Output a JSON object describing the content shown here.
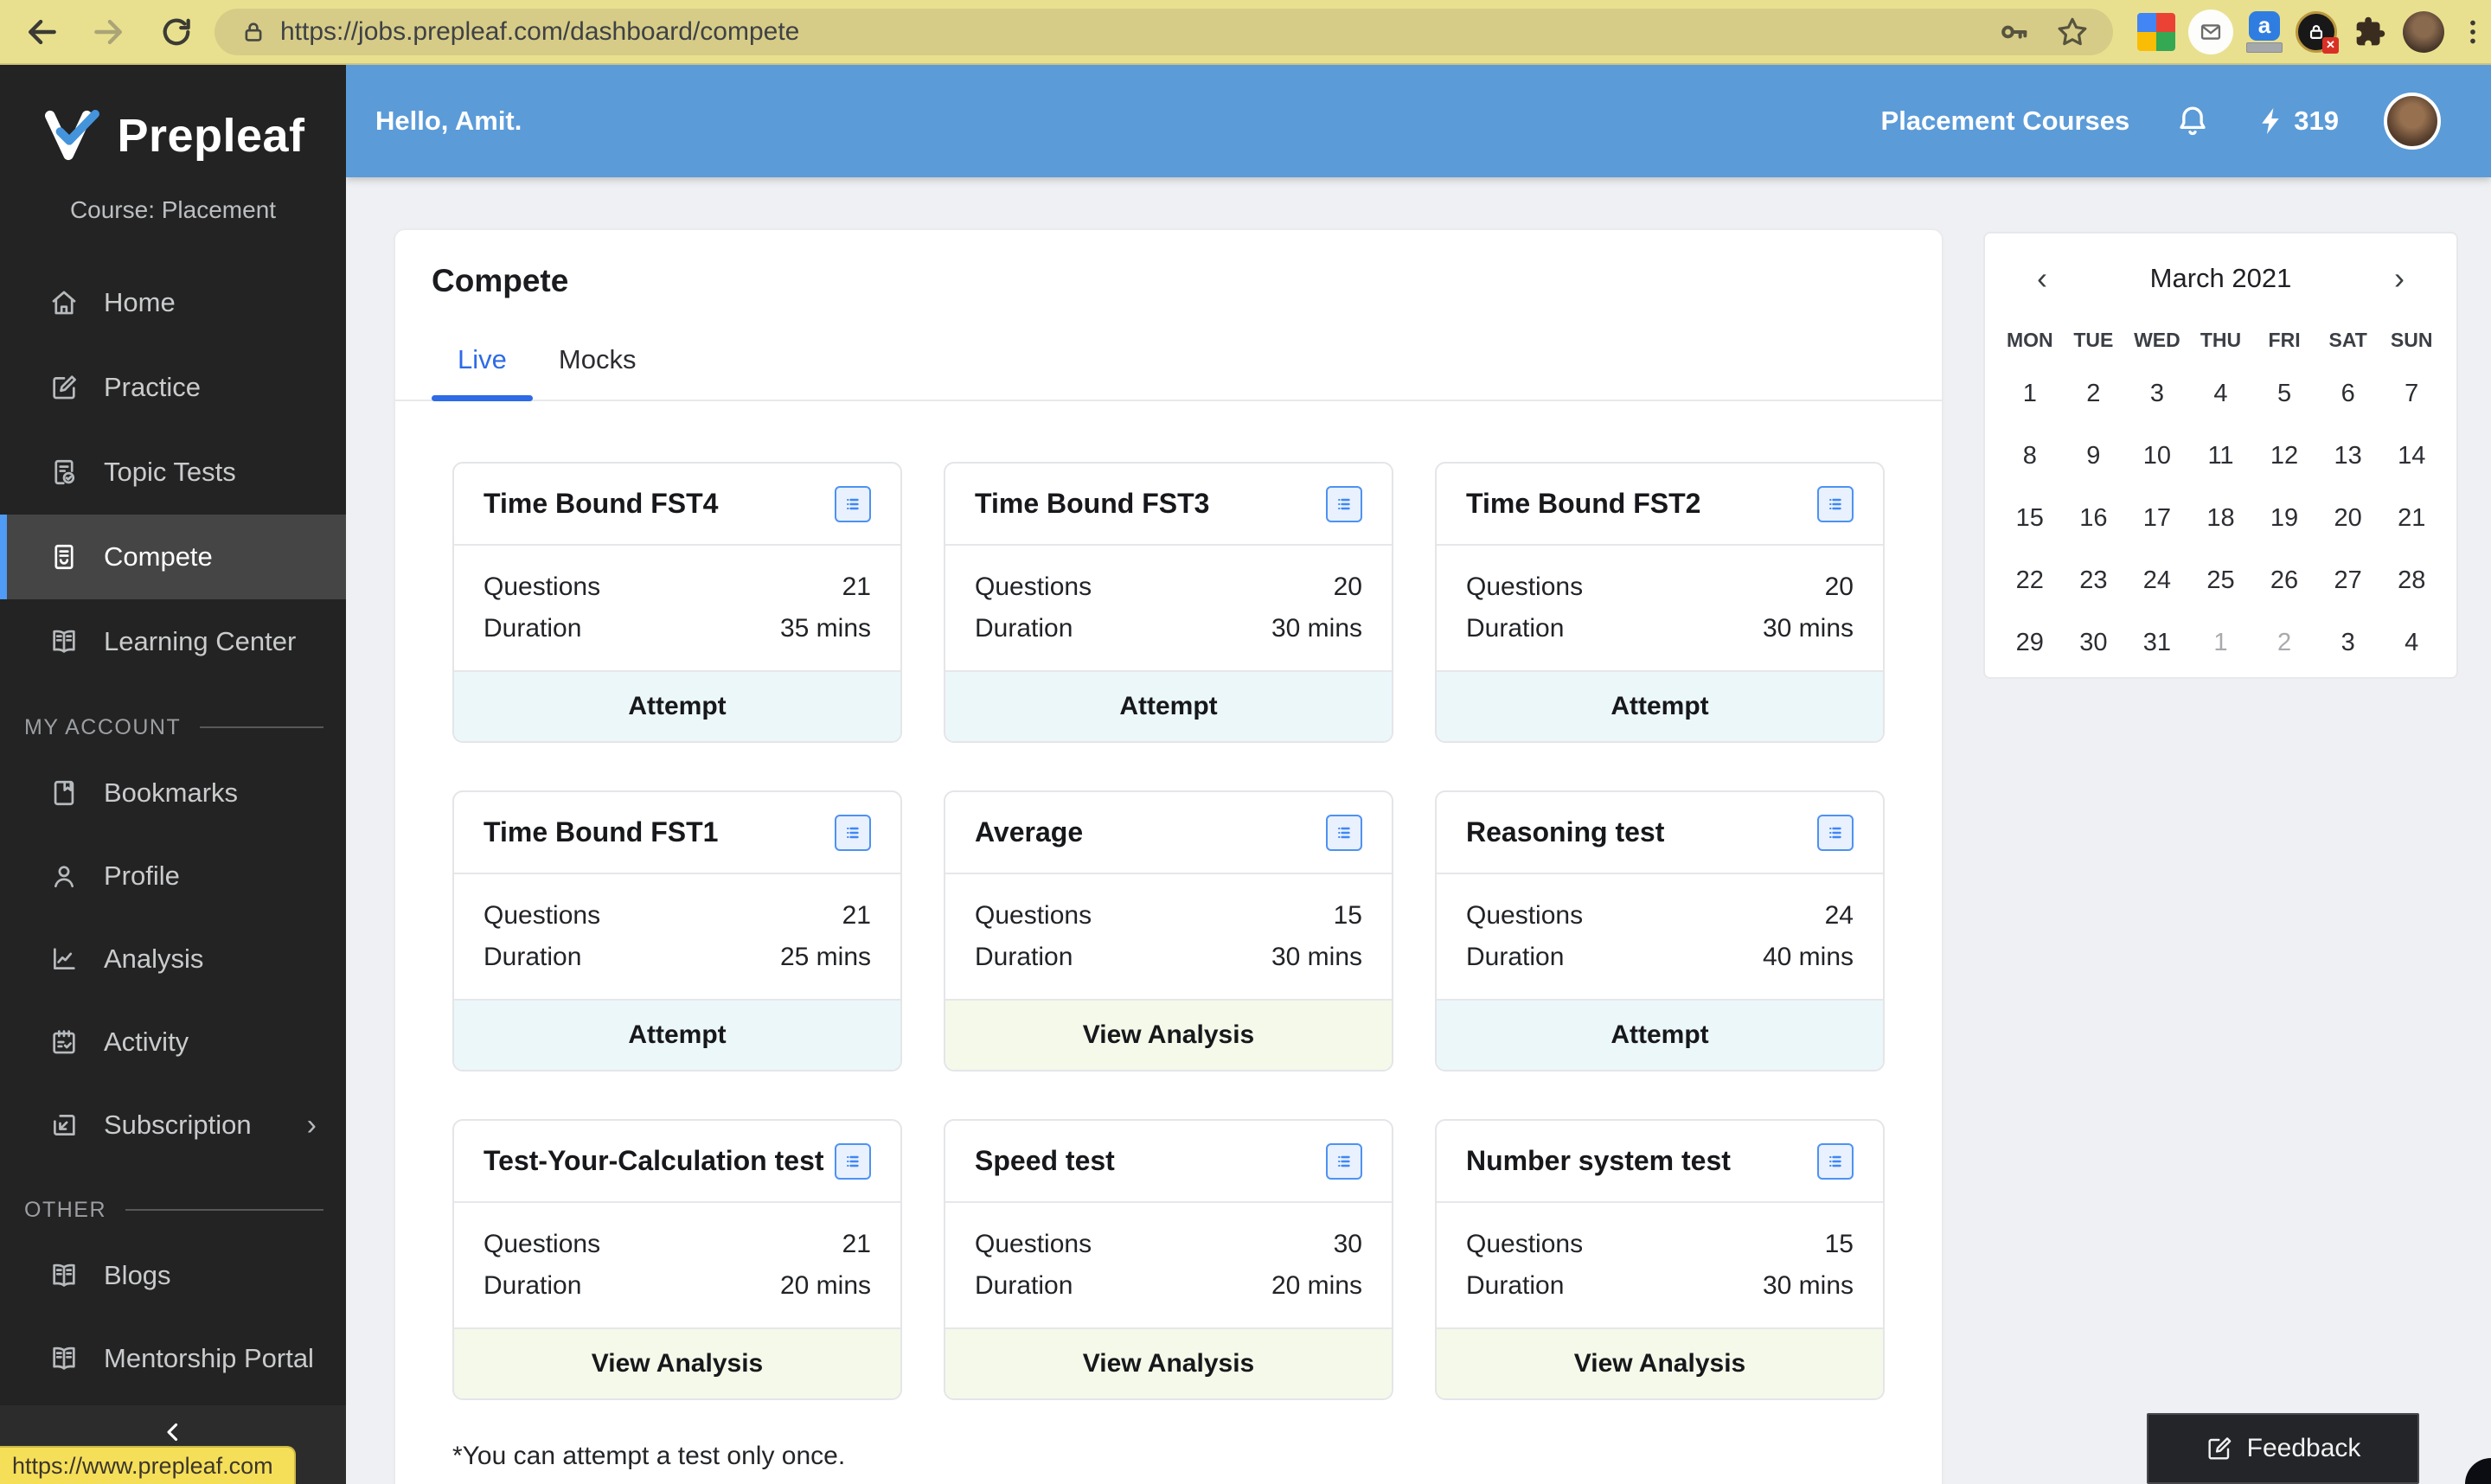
{
  "browser": {
    "url": "https://jobs.prepleaf.com/dashboard/compete",
    "status_tooltip": "https://www.prepleaf.com"
  },
  "header": {
    "greeting": "Hello, Amit.",
    "nav_link": "Placement Courses",
    "energy_count": "319"
  },
  "sidebar": {
    "brand": "Prepleaf",
    "course_label": "Course: Placement",
    "nav": [
      {
        "label": "Home",
        "icon": "home",
        "name": "sidebar-item-home"
      },
      {
        "label": "Practice",
        "icon": "practice",
        "name": "sidebar-item-practice"
      },
      {
        "label": "Topic Tests",
        "icon": "topic-tests",
        "name": "sidebar-item-topic-tests"
      },
      {
        "label": "Compete",
        "icon": "compete",
        "name": "sidebar-item-compete",
        "active": true
      },
      {
        "label": "Learning Center",
        "icon": "book",
        "name": "sidebar-item-learning-center"
      }
    ],
    "sections": [
      {
        "title": "MY ACCOUNT",
        "items": [
          {
            "label": "Bookmarks",
            "icon": "bookmark",
            "name": "sidebar-item-bookmarks"
          },
          {
            "label": "Profile",
            "icon": "person",
            "name": "sidebar-item-profile"
          },
          {
            "label": "Analysis",
            "icon": "chart",
            "name": "sidebar-item-analysis"
          },
          {
            "label": "Activity",
            "icon": "activity",
            "name": "sidebar-item-activity"
          },
          {
            "label": "Subscription",
            "icon": "subscription",
            "name": "sidebar-item-subscription",
            "chevron": "›"
          }
        ]
      },
      {
        "title": "OTHER",
        "items": [
          {
            "label": "Blogs",
            "icon": "book",
            "name": "sidebar-item-blogs"
          },
          {
            "label": "Mentorship Portal",
            "icon": "book",
            "name": "sidebar-item-mentorship-portal"
          }
        ]
      }
    ]
  },
  "main": {
    "title": "Compete",
    "tabs": [
      {
        "label": "Live",
        "active": true,
        "name": "tab-live"
      },
      {
        "label": "Mocks",
        "name": "tab-mocks"
      }
    ],
    "card_labels": {
      "questions": "Questions",
      "duration": "Duration"
    },
    "cards": [
      {
        "title": "Time Bound FST4",
        "questions": "21",
        "duration": "35 mins",
        "action": "Attempt"
      },
      {
        "title": "Time Bound FST3",
        "questions": "20",
        "duration": "30 mins",
        "action": "Attempt"
      },
      {
        "title": "Time Bound FST2",
        "questions": "20",
        "duration": "30 mins",
        "action": "Attempt"
      },
      {
        "title": "Time Bound FST1",
        "questions": "21",
        "duration": "25 mins",
        "action": "Attempt"
      },
      {
        "title": "Average",
        "questions": "15",
        "duration": "30 mins",
        "action": "View Analysis"
      },
      {
        "title": "Reasoning test",
        "questions": "24",
        "duration": "40 mins",
        "action": "Attempt"
      },
      {
        "title": "Test-Your-Calculation test",
        "questions": "21",
        "duration": "20 mins",
        "action": "View Analysis"
      },
      {
        "title": "Speed test",
        "questions": "30",
        "duration": "20 mins",
        "action": "View Analysis"
      },
      {
        "title": "Number system test",
        "questions": "15",
        "duration": "30 mins",
        "action": "View Analysis"
      }
    ],
    "note": "*You can attempt a test only once."
  },
  "calendar": {
    "title": "March 2021",
    "prev": "‹",
    "next": "›",
    "weekdays": [
      "MON",
      "TUE",
      "WED",
      "THU",
      "FRI",
      "SAT",
      "SUN"
    ],
    "dates": [
      {
        "d": "1"
      },
      {
        "d": "2"
      },
      {
        "d": "3"
      },
      {
        "d": "4"
      },
      {
        "d": "5"
      },
      {
        "d": "6"
      },
      {
        "d": "7"
      },
      {
        "d": "8"
      },
      {
        "d": "9"
      },
      {
        "d": "10"
      },
      {
        "d": "11"
      },
      {
        "d": "12"
      },
      {
        "d": "13"
      },
      {
        "d": "14"
      },
      {
        "d": "15"
      },
      {
        "d": "16"
      },
      {
        "d": "17"
      },
      {
        "d": "18"
      },
      {
        "d": "19"
      },
      {
        "d": "20"
      },
      {
        "d": "21"
      },
      {
        "d": "22"
      },
      {
        "d": "23"
      },
      {
        "d": "24"
      },
      {
        "d": "25"
      },
      {
        "d": "26"
      },
      {
        "d": "27"
      },
      {
        "d": "28"
      },
      {
        "d": "29"
      },
      {
        "d": "30"
      },
      {
        "d": "31"
      },
      {
        "d": "1",
        "muted": true
      },
      {
        "d": "2",
        "muted": true
      },
      {
        "d": "3"
      },
      {
        "d": "4"
      }
    ]
  },
  "feedback": {
    "label": "Feedback"
  }
}
